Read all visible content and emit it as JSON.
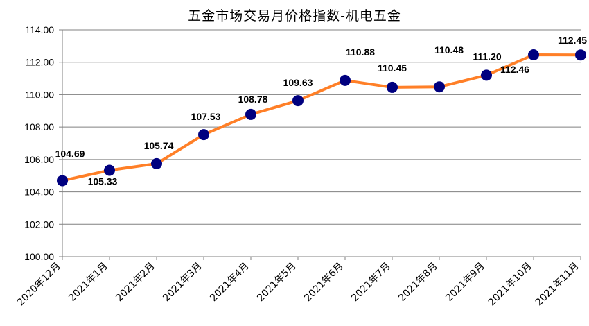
{
  "chart_data": {
    "type": "line",
    "title": "五金市场交易月价格指数-机电五金",
    "categories": [
      "2020年12月",
      "2021年1月",
      "2021年2月",
      "2021年3月",
      "2021年4月",
      "2021年5月",
      "2021年6月",
      "2021年7月",
      "2021年8月",
      "2021年9月",
      "2021年10月",
      "2021年11月"
    ],
    "series": [
      {
        "values": [
          104.69,
          105.33,
          105.74,
          107.53,
          108.78,
          109.63,
          110.88,
          110.45,
          110.48,
          111.2,
          112.46,
          112.45
        ]
      }
    ],
    "data_labels": [
      "104.69",
      "105.33",
      "105.74",
      "107.53",
      "108.78",
      "109.63",
      "110.88",
      "110.45",
      "110.48",
      "111.20",
      "112.46",
      "112.45"
    ],
    "y_ticks": [
      "100.00",
      "102.00",
      "104.00",
      "106.00",
      "108.00",
      "110.00",
      "112.00",
      "114.00"
    ],
    "ylim": [
      100,
      114
    ],
    "grid": true,
    "legend": "none",
    "colors": {
      "line": "#FF7F27",
      "marker": "#00007F",
      "grid": "#808080",
      "axis": "#808080"
    }
  }
}
